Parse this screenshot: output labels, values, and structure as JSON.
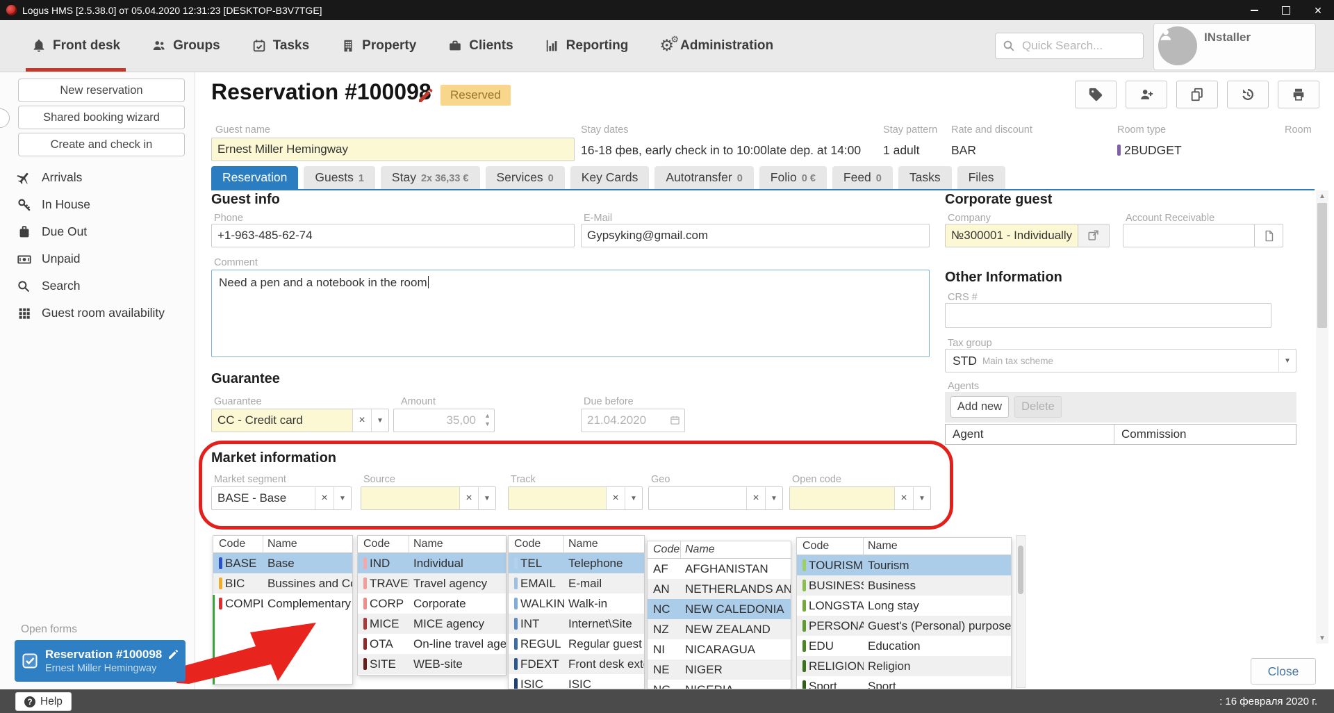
{
  "titlebar": {
    "title": "Logus HMS [2.5.38.0] от 05.04.2020 12:31:23 [DESKTOP-B3V7TGE]"
  },
  "nav": {
    "items": [
      {
        "icon": "bell-icon",
        "label": "Front desk",
        "active": true
      },
      {
        "icon": "groups-icon",
        "label": "Groups"
      },
      {
        "icon": "tasks-icon",
        "label": "Tasks"
      },
      {
        "icon": "property-icon",
        "label": "Property"
      },
      {
        "icon": "clients-icon",
        "label": "Clients"
      },
      {
        "icon": "reporting-icon",
        "label": "Reporting"
      },
      {
        "icon": "administration-icon",
        "label": "Administration"
      }
    ],
    "search_placeholder": "Quick Search...",
    "user_name": "INstaller"
  },
  "sidebar": {
    "action_buttons": [
      "New reservation",
      "Shared booking wizard",
      "Create and check in"
    ],
    "menu": [
      {
        "icon": "plane-icon",
        "label": "Arrivals"
      },
      {
        "icon": "key-icon",
        "label": "In House"
      },
      {
        "icon": "suitcase-icon",
        "label": "Due Out"
      },
      {
        "icon": "cash-icon",
        "label": "Unpaid"
      },
      {
        "icon": "magnifier-icon",
        "label": "Search"
      },
      {
        "icon": "grid-icon",
        "label": "Guest room availability"
      }
    ]
  },
  "reservation": {
    "title": "Reservation #100098",
    "status": "Reserved",
    "toolbar_icons": [
      "tag-icon",
      "add-guest-icon",
      "copy-icon",
      "history-icon",
      "print-icon"
    ],
    "guest_name": {
      "label": "Guest name",
      "value": "Ernest Miller Hemingway"
    },
    "stay_dates": {
      "label": "Stay dates",
      "value": "16-18 фев, early check in to 10:00late dep. at 14:00"
    },
    "stay_pattern": {
      "label": "Stay pattern",
      "value": "1 adult"
    },
    "rate": {
      "label": "Rate and discount",
      "value": "BAR"
    },
    "room_type": {
      "label": "Room type",
      "value": "2BUDGET",
      "color": "#8060a8"
    },
    "room": {
      "label": "Room",
      "value": ""
    }
  },
  "tabs": [
    {
      "label": "Reservation",
      "active": true
    },
    {
      "label": "Guests",
      "badge": "1"
    },
    {
      "label": "Stay",
      "badge": "2x 36,33 €"
    },
    {
      "label": "Services",
      "badge": "0"
    },
    {
      "label": "Key Cards"
    },
    {
      "label": "Autotransfer",
      "badge": "0"
    },
    {
      "label": "Folio",
      "badge": "0 €"
    },
    {
      "label": "Feed",
      "badge": "0"
    },
    {
      "label": "Tasks"
    },
    {
      "label": "Files"
    }
  ],
  "guest_info": {
    "heading": "Guest info",
    "phone": {
      "label": "Phone",
      "value": "+1-963-485-62-74"
    },
    "email": {
      "label": "E-Mail",
      "value": "Gypsyking@gmail.com"
    },
    "comment": {
      "label": "Comment",
      "value": "Need a pen and a notebook in the room"
    }
  },
  "guarantee": {
    "heading": "Guarantee",
    "guarantee": {
      "label": "Guarantee",
      "value": "CC - Credit card"
    },
    "amount": {
      "label": "Amount",
      "value": "35,00"
    },
    "due_before": {
      "label": "Due before",
      "value": "21.04.2020"
    }
  },
  "market": {
    "heading": "Market information",
    "fields": [
      {
        "label": "Market segment",
        "value": "BASE - Base",
        "highlight": false
      },
      {
        "label": "Source",
        "value": "",
        "highlight": true
      },
      {
        "label": "Track",
        "value": "",
        "highlight": true
      },
      {
        "label": "Geo",
        "value": "",
        "highlight": false
      },
      {
        "label": "Open code",
        "value": "",
        "highlight": true
      }
    ]
  },
  "lookup_tables": [
    {
      "headers": [
        "Code",
        "Name"
      ],
      "selected": 0,
      "rows": [
        {
          "code": "BASE",
          "name": "Base",
          "marker": "#2b50c8"
        },
        {
          "code": "BIC",
          "name": "Bussines and Co",
          "marker": "#f0ad2d"
        },
        {
          "code": "COMPL",
          "name": "Complementary",
          "marker": "#e02d2d"
        }
      ]
    },
    {
      "headers": [
        "Code",
        "Name"
      ],
      "selected": 0,
      "rows": [
        {
          "code": "IND",
          "name": "Individual",
          "marker": "#f4a9a8"
        },
        {
          "code": "TRAVEL",
          "name": "Travel agency",
          "marker": "#f19e9d"
        },
        {
          "code": "CORP",
          "name": "Corporate",
          "marker": "#ee8f8e"
        },
        {
          "code": "MICE",
          "name": "MICE agency",
          "marker": "#aa3939"
        },
        {
          "code": "OTA",
          "name": "On-line travel age",
          "marker": "#8f2b2b"
        },
        {
          "code": "SITE",
          "name": "WEB-site",
          "marker": "#641d1d"
        }
      ]
    },
    {
      "headers": [
        "Code",
        "Name"
      ],
      "selected": 0,
      "rows": [
        {
          "code": "TEL",
          "name": "Telephone",
          "marker": "#b5d2ec"
        },
        {
          "code": "EMAIL",
          "name": "E-mail",
          "marker": "#9cbfe2"
        },
        {
          "code": "WALKIN",
          "name": "Walk-in",
          "marker": "#82add6"
        },
        {
          "code": "INT",
          "name": "Internet\\Site",
          "marker": "#5d8cc0"
        },
        {
          "code": "REGUL",
          "name": "Regular guest",
          "marker": "#3d6da3"
        },
        {
          "code": "FDEXT",
          "name": "Front desk exter",
          "marker": "#2c568a"
        },
        {
          "code": "ISIC",
          "name": "ISIC",
          "marker": "#1d4070"
        }
      ]
    },
    {
      "headers": [
        "Code",
        "Name"
      ],
      "selected": 2,
      "italic": true,
      "rows": [
        {
          "code": "AF",
          "name": "AFGHANISTAN"
        },
        {
          "code": "AN",
          "name": "NETHERLANDS ANTI"
        },
        {
          "code": "NC",
          "name": "NEW CALEDONIA"
        },
        {
          "code": "NZ",
          "name": "NEW ZEALAND"
        },
        {
          "code": "NI",
          "name": "NICARAGUA"
        },
        {
          "code": "NE",
          "name": "NIGER"
        },
        {
          "code": "NG",
          "name": "NIGERIA"
        }
      ]
    },
    {
      "headers": [
        "Code",
        "Name"
      ],
      "selected": 0,
      "rows": [
        {
          "code": "TOURISM",
          "name": "Tourism",
          "marker": "#9fce63"
        },
        {
          "code": "BUSINESS",
          "name": "Business",
          "marker": "#8abe50"
        },
        {
          "code": "LONGSTAY",
          "name": "Long stay",
          "marker": "#74a93e"
        },
        {
          "code": "PERSONAL",
          "name": "Guest's (Personal) purpose",
          "marker": "#619a32"
        },
        {
          "code": "EDU",
          "name": "Education",
          "marker": "#4d8526"
        },
        {
          "code": "RELIGION",
          "name": "Religion",
          "marker": "#3c701c"
        },
        {
          "code": "Sport",
          "name": "Sport",
          "marker": "#2f5f14"
        }
      ]
    }
  ],
  "corporate": {
    "heading": "Corporate guest",
    "company": {
      "label": "Company",
      "value": "№300001 - Individually"
    },
    "account": {
      "label": "Account Receivable",
      "value": ""
    }
  },
  "other_info": {
    "heading": "Other Information",
    "crs_label": "CRS #",
    "tax": {
      "label": "Tax group",
      "code": "STD",
      "desc": "Main tax scheme"
    }
  },
  "agents": {
    "label": "Agents",
    "add_label": "Add new",
    "delete_label": "Delete",
    "columns": [
      "Agent",
      "Commission"
    ]
  },
  "open_forms": {
    "label": "Open forms",
    "title": "Reservation #100098",
    "subtitle": "Ernest Miller Hemingway"
  },
  "bottom": {
    "help_label": "Help",
    "date_text": ": 16 февраля 2020 г."
  },
  "close_label": "Close",
  "colors": {
    "accent": "#2b7dc2",
    "row_highlight": "#abcdea",
    "annotation": "#e2211d",
    "required_bg": "#fcf8d3",
    "badge_bg": "#f8d78c",
    "badge_text": "#97762c",
    "active_underline": "#c0392b"
  }
}
